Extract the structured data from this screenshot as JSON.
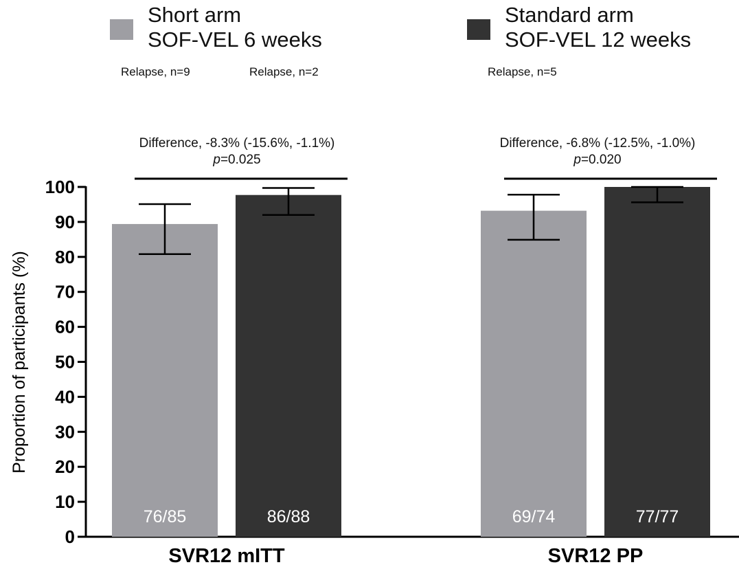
{
  "legend": [
    {
      "line1": "Short arm",
      "line2": "SOF-VEL 6 weeks",
      "color": "#9e9ea3"
    },
    {
      "line1": "Standard arm",
      "line2": "SOF-VEL 12 weeks",
      "color": "#333333"
    }
  ],
  "relapse_notes": [
    "Relapse, n=9",
    "Relapse, n=2",
    "Relapse, n=5"
  ],
  "comparisons": [
    {
      "difference": "Difference, -8.3% (-15.6%, -1.1%)",
      "p_label": "p",
      "p_value": "=0.025"
    },
    {
      "difference": "Difference, -6.8% (-12.5%, -1.0%)",
      "p_label": "p",
      "p_value": "=0.020"
    }
  ],
  "chart_data": {
    "type": "bar",
    "categories": [
      "SVR12 mITT",
      "SVR12 PP"
    ],
    "ylabel": "Proportion of participants (%)",
    "ylim": [
      0,
      100
    ],
    "yticks": [
      0,
      10,
      20,
      30,
      40,
      50,
      60,
      70,
      80,
      90,
      100
    ],
    "series": [
      {
        "values": [
          89.4,
          93.2
        ],
        "ci_low": [
          80.8,
          84.9
        ],
        "ci_high": [
          95.1,
          97.8
        ],
        "labels": [
          "76/85",
          "69/74"
        ],
        "color": "#9e9ea3"
      },
      {
        "values": [
          97.7,
          100
        ],
        "ci_low": [
          92.0,
          95.6
        ],
        "ci_high": [
          99.7,
          100
        ],
        "labels": [
          "86/88",
          "77/77"
        ],
        "color": "#333333"
      }
    ]
  }
}
